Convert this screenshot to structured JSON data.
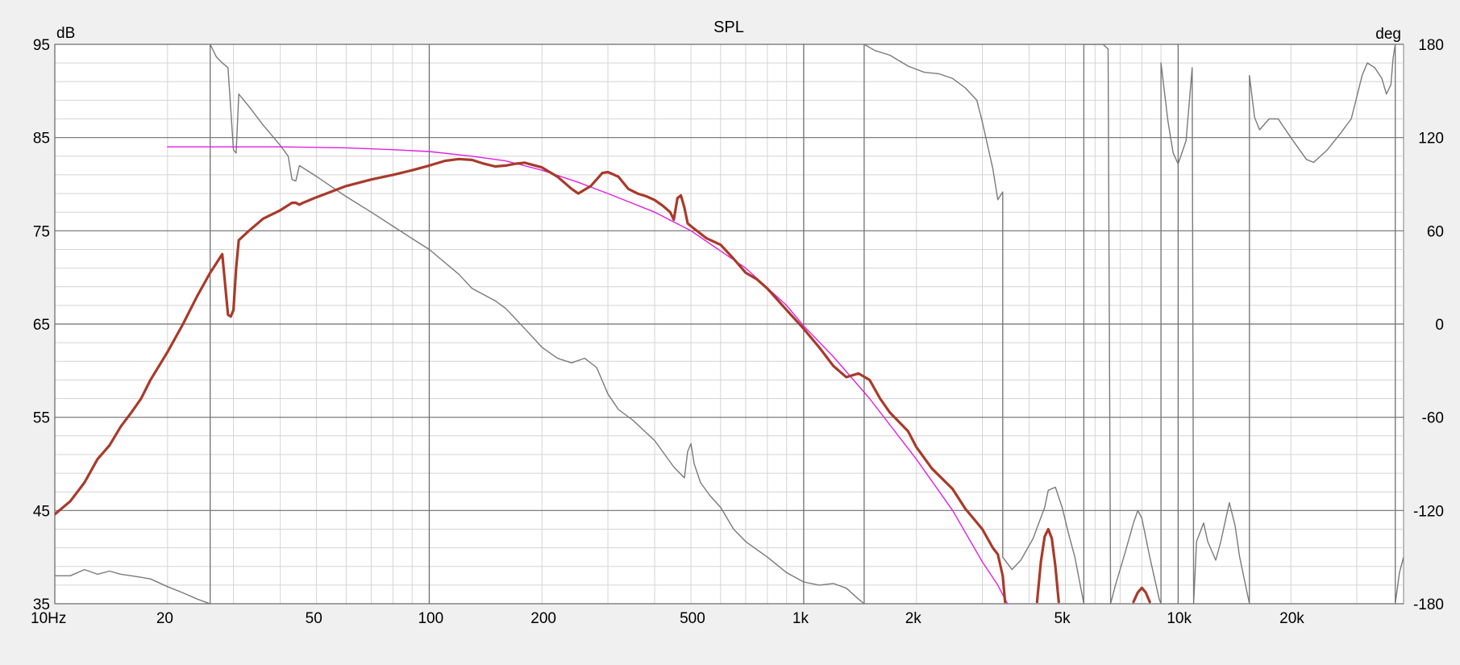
{
  "chart_data": {
    "type": "line",
    "title": "SPL",
    "xscale": "log",
    "xlim": [
      10,
      40000
    ],
    "ylim": [
      35,
      95
    ],
    "y2lim": [
      -180,
      180
    ],
    "yunit": "dB",
    "y2unit": "deg",
    "grid": true,
    "x_ticks": [
      {
        "v": 10,
        "label": "10Hz"
      },
      {
        "v": 20,
        "label": "20"
      },
      {
        "v": 50,
        "label": "50"
      },
      {
        "v": 100,
        "label": "100"
      },
      {
        "v": 200,
        "label": "200"
      },
      {
        "v": 500,
        "label": "500"
      },
      {
        "v": 1000,
        "label": "1k"
      },
      {
        "v": 2000,
        "label": "2k"
      },
      {
        "v": 5000,
        "label": "5k"
      },
      {
        "v": 10000,
        "label": "10k"
      },
      {
        "v": 20000,
        "label": "20k"
      }
    ],
    "y_ticks": [
      {
        "v": 95,
        "label": "95"
      },
      {
        "v": 85,
        "label": "85"
      },
      {
        "v": 75,
        "label": "75"
      },
      {
        "v": 65,
        "label": "65"
      },
      {
        "v": 55,
        "label": "55"
      },
      {
        "v": 45,
        "label": "45"
      },
      {
        "v": 35,
        "label": "35"
      }
    ],
    "y2_ticks": [
      {
        "v": 180,
        "label": "180"
      },
      {
        "v": 120,
        "label": "120"
      },
      {
        "v": 60,
        "label": "60"
      },
      {
        "v": 0,
        "label": "0"
      },
      {
        "v": -60,
        "label": "-60"
      },
      {
        "v": -120,
        "label": "-120"
      },
      {
        "v": -180,
        "label": "-180"
      }
    ],
    "series": [
      {
        "id": "spl",
        "axis": "left",
        "color": "#a83a2a",
        "points": [
          [
            10,
            44.6
          ],
          [
            11,
            46
          ],
          [
            12,
            48
          ],
          [
            13,
            50.5
          ],
          [
            14,
            52
          ],
          [
            15,
            54
          ],
          [
            16,
            55.5
          ],
          [
            17,
            57
          ],
          [
            18,
            59
          ],
          [
            20,
            62
          ],
          [
            22,
            65
          ],
          [
            24,
            68
          ],
          [
            26,
            70.5
          ],
          [
            27,
            71.5
          ],
          [
            28,
            72.5
          ],
          [
            29,
            66
          ],
          [
            29.5,
            65.8
          ],
          [
            30,
            66.5
          ],
          [
            30.5,
            71
          ],
          [
            31,
            74
          ],
          [
            33,
            75
          ],
          [
            36,
            76.3
          ],
          [
            40,
            77.2
          ],
          [
            43,
            78
          ],
          [
            44,
            78
          ],
          [
            45,
            77.8
          ],
          [
            46,
            78
          ],
          [
            50,
            78.6
          ],
          [
            60,
            79.8
          ],
          [
            70,
            80.5
          ],
          [
            80,
            81
          ],
          [
            90,
            81.5
          ],
          [
            100,
            82
          ],
          [
            110,
            82.5
          ],
          [
            120,
            82.7
          ],
          [
            130,
            82.6
          ],
          [
            140,
            82.2
          ],
          [
            150,
            81.9
          ],
          [
            160,
            82
          ],
          [
            170,
            82.2
          ],
          [
            180,
            82.3
          ],
          [
            200,
            81.8
          ],
          [
            220,
            80.8
          ],
          [
            240,
            79.5
          ],
          [
            250,
            79
          ],
          [
            270,
            79.8
          ],
          [
            290,
            81.2
          ],
          [
            300,
            81.3
          ],
          [
            320,
            80.8
          ],
          [
            340,
            79.5
          ],
          [
            360,
            79
          ],
          [
            380,
            78.7
          ],
          [
            400,
            78.3
          ],
          [
            420,
            77.7
          ],
          [
            440,
            77
          ],
          [
            450,
            76.2
          ],
          [
            460,
            78.5
          ],
          [
            470,
            78.8
          ],
          [
            480,
            77.5
          ],
          [
            490,
            75.8
          ],
          [
            500,
            75.5
          ],
          [
            550,
            74.2
          ],
          [
            600,
            73.5
          ],
          [
            650,
            72
          ],
          [
            700,
            70.5
          ],
          [
            750,
            69.8
          ],
          [
            800,
            68.8
          ],
          [
            900,
            66.5
          ],
          [
            1000,
            64.5
          ],
          [
            1100,
            62.5
          ],
          [
            1200,
            60.5
          ],
          [
            1300,
            59.3
          ],
          [
            1400,
            59.7
          ],
          [
            1500,
            59
          ],
          [
            1600,
            57
          ],
          [
            1700,
            55.5
          ],
          [
            1900,
            53.5
          ],
          [
            2000,
            51.8
          ],
          [
            2200,
            49.5
          ],
          [
            2500,
            47.3
          ],
          [
            2700,
            45.2
          ],
          [
            3000,
            43
          ],
          [
            3200,
            41
          ],
          [
            3300,
            40.3
          ],
          [
            3400,
            38
          ],
          [
            3450,
            35.2
          ]
        ],
        "segments": [
          [
            [
              4200,
              35.2
            ],
            [
              4300,
              39.5
            ],
            [
              4400,
              42.2
            ],
            [
              4500,
              43
            ],
            [
              4600,
              42
            ],
            [
              4700,
              39
            ],
            [
              4800,
              35.2
            ]
          ],
          [
            [
              7600,
              35.2
            ],
            [
              7800,
              36.2
            ],
            [
              8000,
              36.7
            ],
            [
              8200,
              36.2
            ],
            [
              8400,
              35.2
            ]
          ]
        ]
      },
      {
        "id": "target",
        "axis": "left",
        "color": "#e020e0",
        "points": [
          [
            20,
            84
          ],
          [
            40,
            84
          ],
          [
            60,
            83.9
          ],
          [
            80,
            83.7
          ],
          [
            100,
            83.5
          ],
          [
            130,
            83
          ],
          [
            160,
            82.5
          ],
          [
            200,
            81.5
          ],
          [
            250,
            80.2
          ],
          [
            300,
            79
          ],
          [
            400,
            77
          ],
          [
            500,
            75
          ],
          [
            700,
            71
          ],
          [
            900,
            67
          ],
          [
            1000,
            64.8
          ],
          [
            1200,
            61.5
          ],
          [
            1500,
            57
          ],
          [
            2000,
            50.5
          ],
          [
            2500,
            45
          ],
          [
            3000,
            39.5
          ],
          [
            3300,
            37
          ],
          [
            3500,
            35
          ]
        ]
      },
      {
        "id": "phase",
        "axis": "right",
        "color": "#7a7a7a",
        "points": [
          [
            10,
            -162
          ],
          [
            11,
            -162
          ],
          [
            12,
            -158
          ],
          [
            13,
            -161
          ],
          [
            14,
            -159
          ],
          [
            15,
            -161
          ],
          [
            16,
            -162
          ],
          [
            17,
            -163
          ],
          [
            18,
            -164
          ],
          [
            20,
            -169
          ],
          [
            22,
            -173
          ],
          [
            24,
            -177
          ],
          [
            26,
            -180
          ],
          [
            26,
            180
          ],
          [
            27,
            172
          ],
          [
            28,
            168
          ],
          [
            29,
            165
          ],
          [
            30,
            112
          ],
          [
            30.5,
            110
          ],
          [
            31,
            148
          ],
          [
            33,
            140
          ],
          [
            36,
            128
          ],
          [
            40,
            115
          ],
          [
            42,
            108
          ],
          [
            43,
            93
          ],
          [
            44,
            92
          ],
          [
            45,
            102
          ],
          [
            50,
            95
          ],
          [
            60,
            82
          ],
          [
            70,
            72
          ],
          [
            80,
            63
          ],
          [
            90,
            55
          ],
          [
            100,
            48
          ],
          [
            120,
            32
          ],
          [
            130,
            23
          ],
          [
            150,
            15
          ],
          [
            160,
            10
          ],
          [
            180,
            -3
          ],
          [
            200,
            -15
          ],
          [
            220,
            -22
          ],
          [
            240,
            -25
          ],
          [
            260,
            -22
          ],
          [
            280,
            -28
          ],
          [
            300,
            -45
          ],
          [
            320,
            -55
          ],
          [
            350,
            -62
          ],
          [
            400,
            -75
          ],
          [
            450,
            -92
          ],
          [
            480,
            -99
          ],
          [
            490,
            -82
          ],
          [
            500,
            -77
          ],
          [
            510,
            -90
          ],
          [
            530,
            -102
          ],
          [
            560,
            -110
          ],
          [
            600,
            -118
          ],
          [
            650,
            -132
          ],
          [
            700,
            -140
          ],
          [
            800,
            -150
          ],
          [
            900,
            -160
          ],
          [
            1000,
            -166
          ],
          [
            1100,
            -168
          ],
          [
            1200,
            -167
          ],
          [
            1300,
            -170
          ],
          [
            1400,
            -177
          ],
          [
            1450,
            -180
          ],
          [
            1450,
            180
          ],
          [
            1550,
            176
          ],
          [
            1700,
            173
          ],
          [
            1900,
            166
          ],
          [
            2100,
            162
          ],
          [
            2300,
            161
          ],
          [
            2500,
            158
          ],
          [
            2700,
            152
          ],
          [
            2900,
            144
          ],
          [
            3000,
            130
          ],
          [
            3200,
            100
          ],
          [
            3300,
            80
          ],
          [
            3400,
            85
          ],
          [
            3400,
            -150
          ],
          [
            3600,
            -158
          ],
          [
            3800,
            -152
          ],
          [
            4100,
            -138
          ],
          [
            4400,
            -118
          ],
          [
            4500,
            -107
          ],
          [
            4700,
            -105
          ],
          [
            4900,
            -118
          ],
          [
            5100,
            -135
          ],
          [
            5300,
            -150
          ],
          [
            5600,
            -180
          ],
          [
            5600,
            180
          ],
          [
            6300,
            180
          ],
          [
            6500,
            177
          ],
          [
            6600,
            -180
          ],
          [
            6800,
            -168
          ],
          [
            7200,
            -148
          ],
          [
            7600,
            -128
          ],
          [
            7800,
            -120
          ],
          [
            8000,
            -125
          ],
          [
            8400,
            -150
          ],
          [
            8900,
            -177
          ],
          [
            9000,
            -180
          ],
          [
            9000,
            168
          ],
          [
            9400,
            130
          ],
          [
            9700,
            110
          ],
          [
            10000,
            103
          ],
          [
            10500,
            118
          ],
          [
            10900,
            165
          ],
          [
            11000,
            -180
          ],
          [
            11200,
            -140
          ],
          [
            11700,
            -128
          ],
          [
            12000,
            -140
          ],
          [
            12600,
            -152
          ],
          [
            13000,
            -140
          ],
          [
            13500,
            -122
          ],
          [
            13700,
            -115
          ],
          [
            14200,
            -130
          ],
          [
            14600,
            -150
          ],
          [
            15500,
            -180
          ],
          [
            15500,
            160
          ],
          [
            16000,
            133
          ],
          [
            16500,
            125
          ],
          [
            17500,
            132
          ],
          [
            18500,
            132
          ],
          [
            20000,
            120
          ],
          [
            22000,
            106
          ],
          [
            23000,
            104
          ],
          [
            25000,
            112
          ],
          [
            27000,
            122
          ],
          [
            29000,
            132
          ],
          [
            31000,
            160
          ],
          [
            32000,
            168
          ],
          [
            33500,
            165
          ],
          [
            35000,
            158
          ],
          [
            36000,
            148
          ],
          [
            37000,
            154
          ],
          [
            37500,
            171
          ],
          [
            38000,
            180
          ],
          [
            38000,
            -180
          ],
          [
            39000,
            -160
          ],
          [
            40000,
            -150
          ]
        ]
      }
    ]
  }
}
